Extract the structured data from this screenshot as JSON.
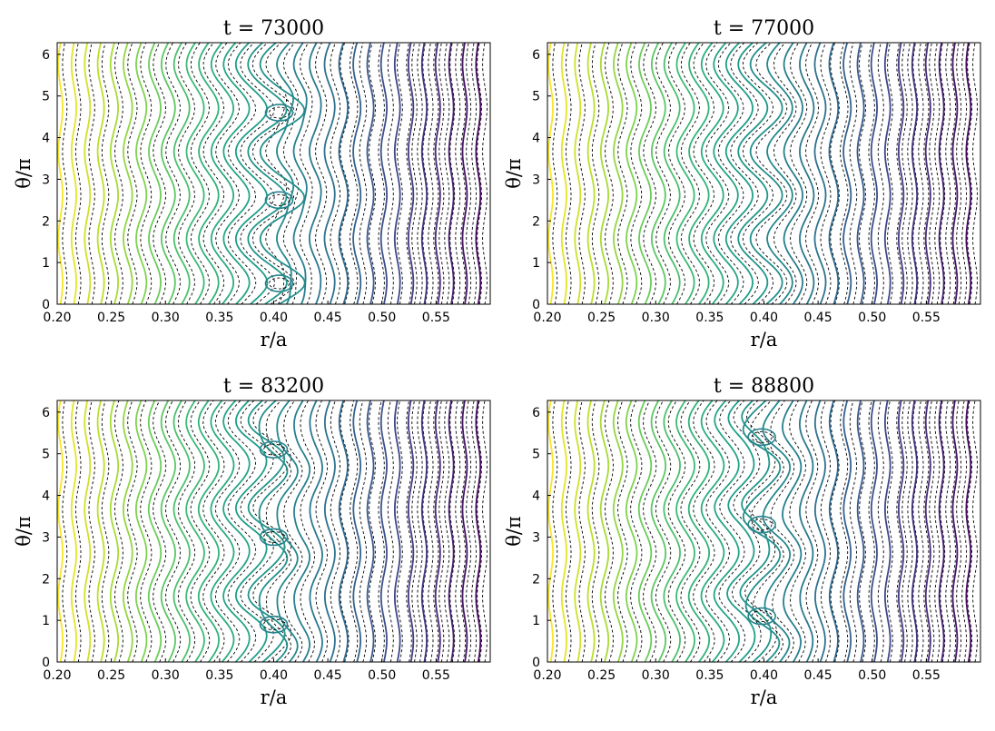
{
  "chart_data": [
    {
      "type": "contour",
      "title": "t = 73000",
      "xlabel": "r/a",
      "ylabel": "θ/π",
      "xlim": [
        0.2,
        0.6
      ],
      "ylim": [
        0,
        6.28
      ],
      "xticks": [
        "0.20",
        "0.25",
        "0.30",
        "0.35",
        "0.40",
        "0.45",
        "0.50",
        "0.55"
      ],
      "yticks": [
        "0",
        "1",
        "2",
        "3",
        "4",
        "5",
        "6"
      ],
      "islands_theta": [
        0.5,
        2.5,
        4.6
      ],
      "island_r": 0.405,
      "colormap": "viridis"
    },
    {
      "type": "contour",
      "title": "t = 77000",
      "xlabel": "r/a",
      "ylabel": "θ/π",
      "xlim": [
        0.2,
        0.6
      ],
      "ylim": [
        0,
        6.28
      ],
      "xticks": [
        "0.20",
        "0.25",
        "0.30",
        "0.35",
        "0.40",
        "0.45",
        "0.50",
        "0.55"
      ],
      "yticks": [
        "0",
        "1",
        "2",
        "3",
        "4",
        "5",
        "6"
      ],
      "islands_theta": [],
      "island_r": 0.405,
      "colormap": "viridis"
    },
    {
      "type": "contour",
      "title": "t = 83200",
      "xlabel": "r/a",
      "ylabel": "θ/π",
      "xlim": [
        0.2,
        0.6
      ],
      "ylim": [
        0,
        6.28
      ],
      "xticks": [
        "0.20",
        "0.25",
        "0.30",
        "0.35",
        "0.40",
        "0.45",
        "0.50",
        "0.55"
      ],
      "yticks": [
        "0",
        "1",
        "2",
        "3",
        "4",
        "5",
        "6"
      ],
      "islands_theta": [
        0.9,
        3.0,
        5.1
      ],
      "island_r": 0.4,
      "colormap": "viridis"
    },
    {
      "type": "contour",
      "title": "t = 88800",
      "xlabel": "r/a",
      "ylabel": "θ/π",
      "xlim": [
        0.2,
        0.6
      ],
      "ylim": [
        0,
        6.28
      ],
      "xticks": [
        "0.20",
        "0.25",
        "0.30",
        "0.35",
        "0.40",
        "0.45",
        "0.50",
        "0.55"
      ],
      "yticks": [
        "0",
        "1",
        "2",
        "3",
        "4",
        "5",
        "6"
      ],
      "islands_theta": [
        1.1,
        3.3,
        5.4
      ],
      "island_r": 0.398,
      "colormap": "viridis"
    }
  ]
}
